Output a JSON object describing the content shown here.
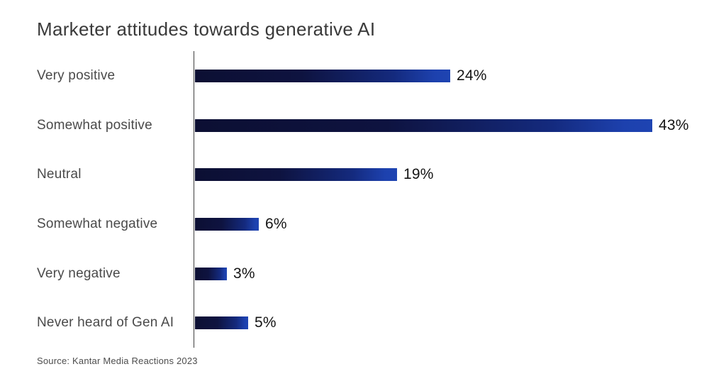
{
  "chart_data": {
    "type": "bar",
    "orientation": "horizontal",
    "title": "Marketer attitudes towards generative AI",
    "categories": [
      "Very positive",
      "Somewhat positive",
      "Neutral",
      "Somewhat negative",
      "Very negative",
      "Never heard of Gen AI"
    ],
    "values": [
      24,
      43,
      19,
      6,
      3,
      5
    ],
    "value_labels": [
      "24%",
      "43%",
      "19%",
      "6%",
      "3%",
      "5%"
    ],
    "xlim": [
      0,
      43
    ],
    "grid": false,
    "legend": "none",
    "value_label_position": "end-of-bar",
    "source": "Source: Kantar Media Reactions 2023"
  },
  "colors": {
    "background": "#ffffff",
    "title_text": "#3a3a3a",
    "category_text": "#4a4a4a",
    "value_text": "#141414",
    "axis_line": "#3f3f3f",
    "bar_gradient_start": "#0c0f33",
    "bar_gradient_end": "#1e44b2"
  }
}
